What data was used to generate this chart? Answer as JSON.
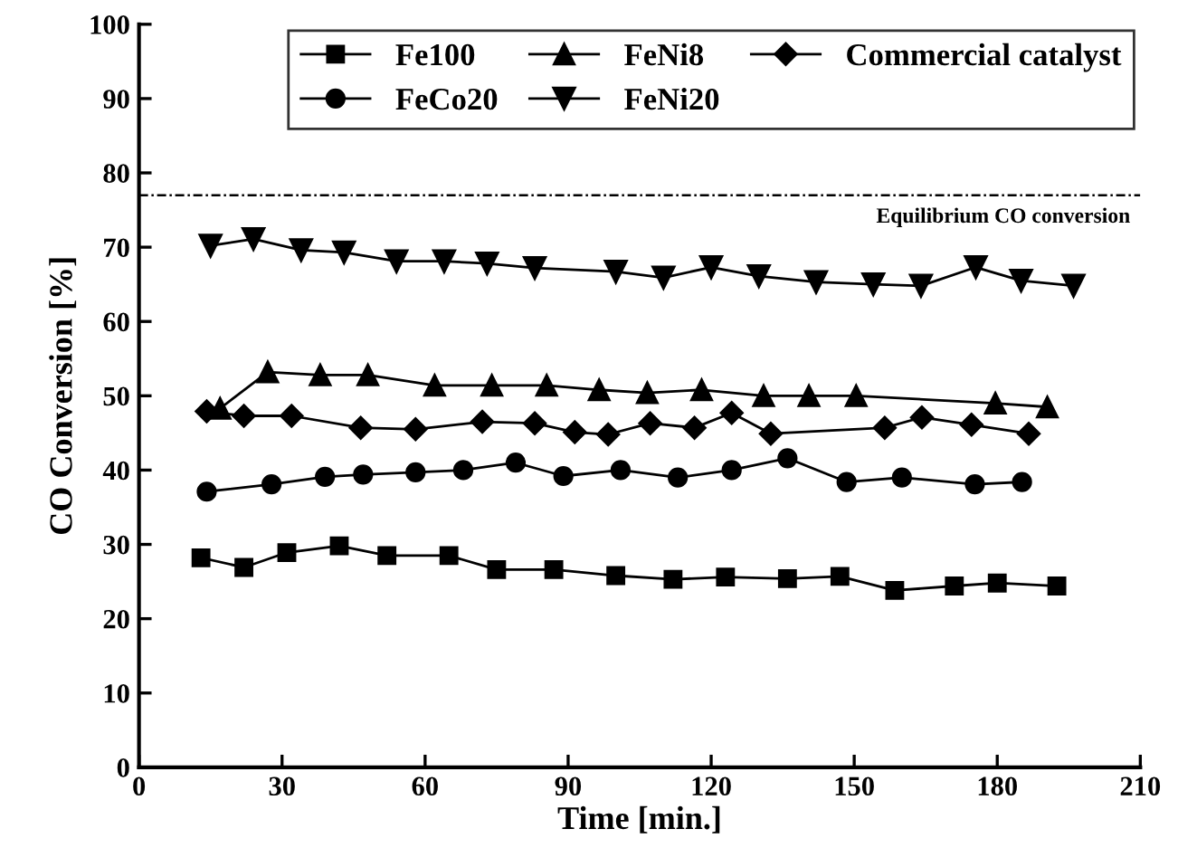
{
  "chart_data": {
    "type": "line",
    "xlabel": "Time [min.]",
    "ylabel": "CO Conversion [%]",
    "xlim": [
      0,
      210
    ],
    "xticks": [
      0,
      30,
      60,
      90,
      120,
      150,
      180,
      210
    ],
    "ylim": [
      0,
      100
    ],
    "yticks": [
      0,
      10,
      20,
      30,
      40,
      50,
      60,
      70,
      80,
      90,
      100
    ],
    "grid": false,
    "legend": "top right",
    "line_style": "solid",
    "ref_lines": [
      {
        "axis": "y",
        "value": 77,
        "label": "Equilibrium CO conversion",
        "color": "#000000",
        "line_style": "dotted"
      }
    ],
    "series": [
      {
        "name": "Fe100",
        "color": "#000000",
        "marker": "square",
        "x": [
          13,
          22,
          31,
          42,
          52,
          65,
          75,
          87,
          100,
          112,
          123,
          136,
          147,
          158.5,
          171,
          180,
          192.5
        ],
        "values": [
          28.2,
          26.9,
          28.9,
          29.8,
          28.5,
          28.5,
          26.6,
          26.6,
          25.8,
          25.3,
          25.6,
          25.4,
          25.7,
          23.8,
          24.4,
          24.8,
          24.4
        ]
      },
      {
        "name": "FeCo20",
        "color": "#000000",
        "marker": "circle",
        "x": [
          14.2,
          27.8,
          39,
          47,
          58,
          68,
          79,
          89,
          101,
          113,
          124.3,
          136,
          148.4,
          160,
          175.3,
          185.2
        ],
        "values": [
          37.1,
          38.1,
          39.1,
          39.4,
          39.7,
          40.0,
          41.0,
          39.2,
          40.0,
          39.0,
          40.0,
          41.6,
          38.4,
          39.0,
          38.1,
          38.4
        ]
      },
      {
        "name": "FeNi8",
        "color": "#000000",
        "marker": "triangle",
        "x": [
          17,
          27,
          38,
          48,
          62,
          74,
          85.5,
          96.5,
          106.6,
          118,
          131,
          140.5,
          150.4,
          179.6,
          190.5
        ],
        "values": [
          48.3,
          53.2,
          52.8,
          52.8,
          51.4,
          51.4,
          51.4,
          50.8,
          50.4,
          50.8,
          50.0,
          50.0,
          50.0,
          49.0,
          48.5
        ]
      },
      {
        "name": "FeNi20",
        "color": "#000000",
        "marker": "triangle_down",
        "x": [
          15,
          24,
          34,
          43,
          54,
          64,
          73,
          83,
          100,
          110,
          120,
          130,
          142,
          154,
          164,
          175.5,
          185,
          196
        ],
        "values": [
          70.2,
          71.1,
          69.6,
          69.3,
          68.1,
          68.1,
          67.8,
          67.2,
          66.7,
          65.9,
          67.3,
          66.1,
          65.3,
          65.0,
          64.8,
          67.3,
          65.5,
          64.8
        ]
      },
      {
        "name": "Commercial catalyst",
        "color": "#000000",
        "marker": "diamond",
        "x": [
          14.2,
          22,
          32,
          46.5,
          58,
          72,
          83,
          91.4,
          98.4,
          107.2,
          116.5,
          124.3,
          132.5,
          156.4,
          164.2,
          174.6,
          186.6
        ],
        "values": [
          47.9,
          47.3,
          47.3,
          45.7,
          45.5,
          46.5,
          46.3,
          45.1,
          44.8,
          46.3,
          45.7,
          47.7,
          44.9,
          45.7,
          47.1,
          46.1,
          44.9
        ]
      }
    ]
  }
}
